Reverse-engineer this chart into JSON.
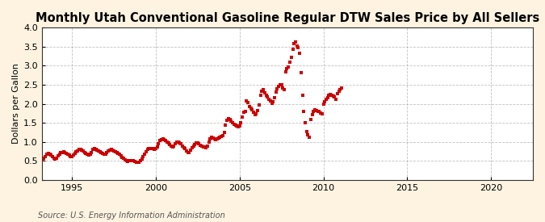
{
  "title": "Monthly Utah Conventional Gasoline Regular DTW Sales Price by All Sellers",
  "ylabel": "Dollars per Gallon",
  "source": "Source: U.S. Energy Information Administration",
  "bg_color": "#fdf3e0",
  "plot_bg_color": "#ffffff",
  "line_color": "#cc0000",
  "marker": "s",
  "marker_size": 2.8,
  "ylim": [
    0.0,
    4.0
  ],
  "yticks": [
    0.0,
    0.5,
    1.0,
    1.5,
    2.0,
    2.5,
    3.0,
    3.5,
    4.0
  ],
  "xlim_start": 1993.2,
  "xlim_end": 2022.5,
  "xticks": [
    1995,
    2000,
    2005,
    2010,
    2015,
    2020
  ],
  "grid_color": "#999999",
  "title_fontsize": 10.5,
  "title_bold": true,
  "data": {
    "dates": [
      1993.25,
      1993.33,
      1993.42,
      1993.5,
      1993.58,
      1993.67,
      1993.75,
      1993.83,
      1993.92,
      1994.0,
      1994.08,
      1994.17,
      1994.25,
      1994.33,
      1994.42,
      1994.5,
      1994.58,
      1994.67,
      1994.75,
      1994.83,
      1994.92,
      1995.0,
      1995.08,
      1995.17,
      1995.25,
      1995.33,
      1995.42,
      1995.5,
      1995.58,
      1995.67,
      1995.75,
      1995.83,
      1995.92,
      1996.0,
      1996.08,
      1996.17,
      1996.25,
      1996.33,
      1996.42,
      1996.5,
      1996.58,
      1996.67,
      1996.75,
      1996.83,
      1996.92,
      1997.0,
      1997.08,
      1997.17,
      1997.25,
      1997.33,
      1997.42,
      1997.5,
      1997.58,
      1997.67,
      1997.75,
      1997.83,
      1997.92,
      1998.0,
      1998.08,
      1998.17,
      1998.25,
      1998.33,
      1998.42,
      1998.5,
      1998.58,
      1998.67,
      1998.75,
      1998.83,
      1998.92,
      1999.0,
      1999.08,
      1999.17,
      1999.25,
      1999.33,
      1999.42,
      1999.5,
      1999.58,
      1999.67,
      1999.75,
      1999.83,
      1999.92,
      2000.0,
      2000.08,
      2000.17,
      2000.25,
      2000.33,
      2000.42,
      2000.5,
      2000.58,
      2000.67,
      2000.75,
      2000.83,
      2000.92,
      2001.0,
      2001.08,
      2001.17,
      2001.25,
      2001.33,
      2001.42,
      2001.5,
      2001.58,
      2001.67,
      2001.75,
      2001.83,
      2001.92,
      2002.0,
      2002.08,
      2002.17,
      2002.25,
      2002.33,
      2002.42,
      2002.5,
      2002.58,
      2002.67,
      2002.75,
      2002.83,
      2002.92,
      2003.0,
      2003.08,
      2003.17,
      2003.25,
      2003.33,
      2003.42,
      2003.5,
      2003.58,
      2003.67,
      2003.75,
      2003.83,
      2003.92,
      2004.0,
      2004.08,
      2004.17,
      2004.25,
      2004.33,
      2004.42,
      2004.5,
      2004.58,
      2004.67,
      2004.75,
      2004.83,
      2004.92,
      2005.0,
      2005.08,
      2005.17,
      2005.25,
      2005.33,
      2005.42,
      2005.5,
      2005.58,
      2005.67,
      2005.75,
      2005.83,
      2005.92,
      2006.0,
      2006.08,
      2006.17,
      2006.25,
      2006.33,
      2006.42,
      2006.5,
      2006.58,
      2006.67,
      2006.75,
      2006.83,
      2006.92,
      2007.0,
      2007.08,
      2007.17,
      2007.25,
      2007.33,
      2007.42,
      2007.5,
      2007.58,
      2007.67,
      2007.75,
      2007.83,
      2007.92,
      2008.0,
      2008.08,
      2008.17,
      2008.25,
      2008.33,
      2008.42,
      2008.5,
      2008.58,
      2008.67,
      2008.75,
      2008.83,
      2008.92,
      2009.0,
      2009.08,
      2009.17,
      2009.25,
      2009.33,
      2009.42,
      2009.5,
      2009.58,
      2009.67,
      2009.75,
      2009.83,
      2009.92,
      2010.0,
      2010.08,
      2010.17,
      2010.25,
      2010.33,
      2010.42,
      2010.5,
      2010.58,
      2010.67,
      2010.75,
      2010.83,
      2010.92,
      2011.0,
      2011.08
    ],
    "prices": [
      0.53,
      0.57,
      0.62,
      0.67,
      0.7,
      0.68,
      0.65,
      0.62,
      0.58,
      0.56,
      0.58,
      0.63,
      0.67,
      0.72,
      0.73,
      0.75,
      0.73,
      0.7,
      0.68,
      0.65,
      0.62,
      0.62,
      0.65,
      0.7,
      0.74,
      0.77,
      0.8,
      0.8,
      0.78,
      0.76,
      0.73,
      0.7,
      0.67,
      0.66,
      0.68,
      0.73,
      0.8,
      0.82,
      0.8,
      0.78,
      0.76,
      0.74,
      0.72,
      0.7,
      0.67,
      0.68,
      0.72,
      0.76,
      0.79,
      0.8,
      0.78,
      0.76,
      0.74,
      0.72,
      0.7,
      0.67,
      0.64,
      0.6,
      0.57,
      0.54,
      0.51,
      0.49,
      0.5,
      0.52,
      0.52,
      0.5,
      0.49,
      0.47,
      0.46,
      0.47,
      0.5,
      0.55,
      0.62,
      0.68,
      0.74,
      0.8,
      0.82,
      0.83,
      0.83,
      0.83,
      0.81,
      0.82,
      0.88,
      0.96,
      1.03,
      1.05,
      1.08,
      1.06,
      1.03,
      1.0,
      0.97,
      0.93,
      0.89,
      0.86,
      0.9,
      0.95,
      1.0,
      1.0,
      0.98,
      0.95,
      0.9,
      0.85,
      0.82,
      0.76,
      0.73,
      0.73,
      0.78,
      0.84,
      0.9,
      0.94,
      0.97,
      0.98,
      0.96,
      0.92,
      0.9,
      0.88,
      0.86,
      0.85,
      0.9,
      1.0,
      1.08,
      1.12,
      1.1,
      1.08,
      1.07,
      1.08,
      1.1,
      1.12,
      1.14,
      1.17,
      1.24,
      1.44,
      1.56,
      1.6,
      1.58,
      1.55,
      1.5,
      1.47,
      1.44,
      1.42,
      1.4,
      1.42,
      1.5,
      1.65,
      1.78,
      1.8,
      2.08,
      2.03,
      1.92,
      1.88,
      1.85,
      1.78,
      1.72,
      1.73,
      1.82,
      1.97,
      2.22,
      2.32,
      2.38,
      2.28,
      2.22,
      2.18,
      2.12,
      2.07,
      2.02,
      2.05,
      2.15,
      2.3,
      2.4,
      2.45,
      2.5,
      2.5,
      2.42,
      2.37,
      2.83,
      2.92,
      2.97,
      3.1,
      3.22,
      3.42,
      3.57,
      3.62,
      3.52,
      3.47,
      3.32,
      2.82,
      2.22,
      1.8,
      1.5,
      1.28,
      1.18,
      1.13,
      1.58,
      1.72,
      1.8,
      1.85,
      1.82,
      1.8,
      1.79,
      1.76,
      1.73,
      2.0,
      2.06,
      2.12,
      2.17,
      2.22,
      2.24,
      2.22,
      2.2,
      2.18,
      2.12,
      2.27,
      2.32,
      2.38,
      2.42
    ]
  }
}
